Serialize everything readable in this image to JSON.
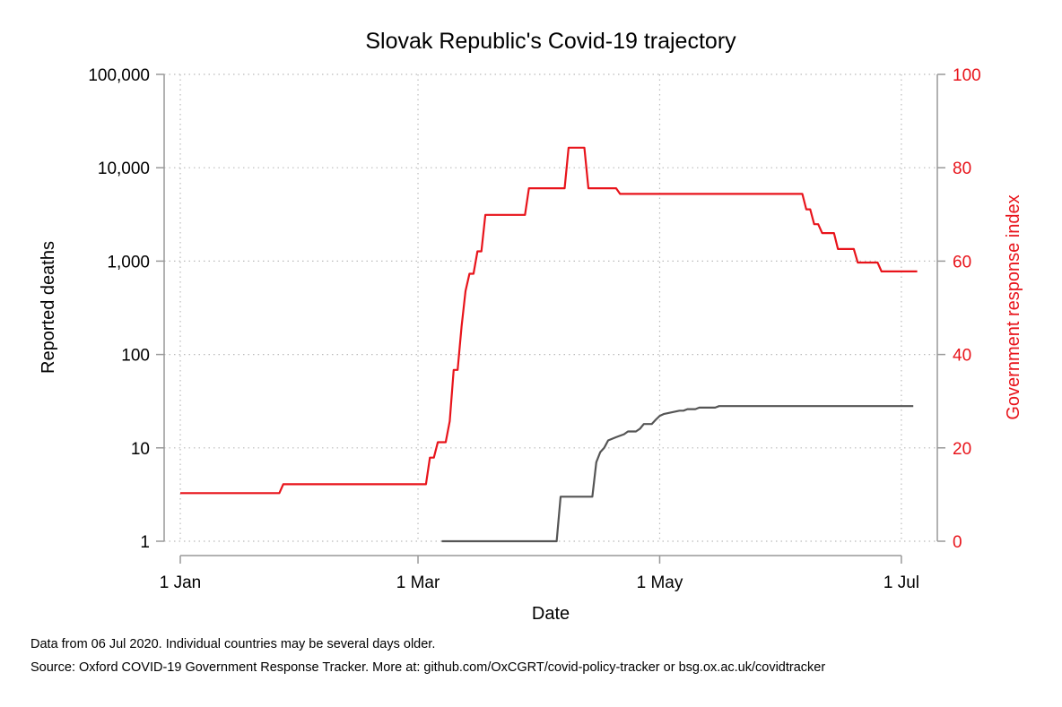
{
  "chart_data": {
    "type": "line",
    "title": "Slovak Republic's Covid-19 trajectory",
    "xlabel": "Date",
    "ylabel": "Reported deaths",
    "y2label": "Government response index",
    "x_range": [
      "2020-01-01",
      "2020-07-06"
    ],
    "x_ticks": [
      {
        "date": "2020-01-01",
        "label": "1 Jan"
      },
      {
        "date": "2020-03-01",
        "label": "1 Mar"
      },
      {
        "date": "2020-05-01",
        "label": "1 May"
      },
      {
        "date": "2020-07-01",
        "label": "1 Jul"
      }
    ],
    "y_left": {
      "scale": "log",
      "range": [
        1,
        100000
      ],
      "ticks": [
        {
          "value": 1,
          "label": "1"
        },
        {
          "value": 10,
          "label": "10"
        },
        {
          "value": 100,
          "label": "100"
        },
        {
          "value": 1000,
          "label": "1,000"
        },
        {
          "value": 10000,
          "label": "10,000"
        },
        {
          "value": 100000,
          "label": "100,000"
        }
      ]
    },
    "y_right": {
      "scale": "linear",
      "range": [
        0,
        100
      ],
      "ticks": [
        {
          "value": 0,
          "label": "0"
        },
        {
          "value": 20,
          "label": "20"
        },
        {
          "value": 40,
          "label": "40"
        },
        {
          "value": 60,
          "label": "60"
        },
        {
          "value": 80,
          "label": "80"
        },
        {
          "value": 100,
          "label": "100"
        }
      ]
    },
    "grid": true,
    "series": [
      {
        "axis": "right",
        "color": "#e8141b",
        "points": [
          [
            "2020-01-01",
            10.3
          ],
          [
            "2020-01-26",
            10.3
          ],
          [
            "2020-01-27",
            12.2
          ],
          [
            "2020-03-03",
            12.2
          ],
          [
            "2020-03-04",
            17.9
          ],
          [
            "2020-03-05",
            17.9
          ],
          [
            "2020-03-06",
            21.2
          ],
          [
            "2020-03-08",
            21.2
          ],
          [
            "2020-03-09",
            25.7
          ],
          [
            "2020-03-10",
            36.7
          ],
          [
            "2020-03-11",
            36.7
          ],
          [
            "2020-03-12",
            46.0
          ],
          [
            "2020-03-13",
            53.6
          ],
          [
            "2020-03-14",
            57.3
          ],
          [
            "2020-03-15",
            57.3
          ],
          [
            "2020-03-16",
            62.1
          ],
          [
            "2020-03-17",
            62.1
          ],
          [
            "2020-03-18",
            69.9
          ],
          [
            "2020-03-28",
            69.9
          ],
          [
            "2020-03-29",
            75.6
          ],
          [
            "2020-04-07",
            75.6
          ],
          [
            "2020-04-08",
            84.3
          ],
          [
            "2020-04-12",
            84.3
          ],
          [
            "2020-04-13",
            75.6
          ],
          [
            "2020-04-20",
            75.6
          ],
          [
            "2020-04-21",
            74.4
          ],
          [
            "2020-06-06",
            74.4
          ],
          [
            "2020-06-07",
            71.1
          ],
          [
            "2020-06-08",
            71.1
          ],
          [
            "2020-06-09",
            67.9
          ],
          [
            "2020-06-10",
            67.9
          ],
          [
            "2020-06-11",
            66.0
          ],
          [
            "2020-06-14",
            66.0
          ],
          [
            "2020-06-15",
            62.6
          ],
          [
            "2020-06-19",
            62.6
          ],
          [
            "2020-06-20",
            59.7
          ],
          [
            "2020-06-25",
            59.7
          ],
          [
            "2020-06-26",
            57.8
          ],
          [
            "2020-07-05",
            57.8
          ]
        ]
      },
      {
        "axis": "left",
        "color": "#555555",
        "points": [
          [
            "2020-03-07",
            1
          ],
          [
            "2020-04-05",
            1
          ],
          [
            "2020-04-06",
            3
          ],
          [
            "2020-04-14",
            3
          ],
          [
            "2020-04-15",
            7
          ],
          [
            "2020-04-16",
            9
          ],
          [
            "2020-04-17",
            10
          ],
          [
            "2020-04-18",
            12
          ],
          [
            "2020-04-20",
            13
          ],
          [
            "2020-04-22",
            14
          ],
          [
            "2020-04-23",
            15
          ],
          [
            "2020-04-25",
            15
          ],
          [
            "2020-04-26",
            16
          ],
          [
            "2020-04-27",
            18
          ],
          [
            "2020-04-29",
            18
          ],
          [
            "2020-04-30",
            20
          ],
          [
            "2020-05-01",
            22
          ],
          [
            "2020-05-02",
            23
          ],
          [
            "2020-05-04",
            24
          ],
          [
            "2020-05-06",
            25
          ],
          [
            "2020-05-07",
            25
          ],
          [
            "2020-05-08",
            26
          ],
          [
            "2020-05-10",
            26
          ],
          [
            "2020-05-11",
            27
          ],
          [
            "2020-05-15",
            27
          ],
          [
            "2020-05-16",
            28
          ],
          [
            "2020-05-19",
            28
          ],
          [
            "2020-05-20",
            28
          ],
          [
            "2020-07-04",
            28
          ]
        ]
      }
    ]
  },
  "notes": {
    "line1": "Data from 06 Jul 2020. Individual countries may be several days older.",
    "line2": "Source: Oxford COVID-19 Government Response Tracker. More at: github.com/OxCGRT/covid-policy-tracker or bsg.ox.ac.uk/covidtracker"
  },
  "colors": {
    "response_index": "#e8141b",
    "deaths": "#555555",
    "axis": "#999999",
    "grid": "#bbbbbb"
  }
}
